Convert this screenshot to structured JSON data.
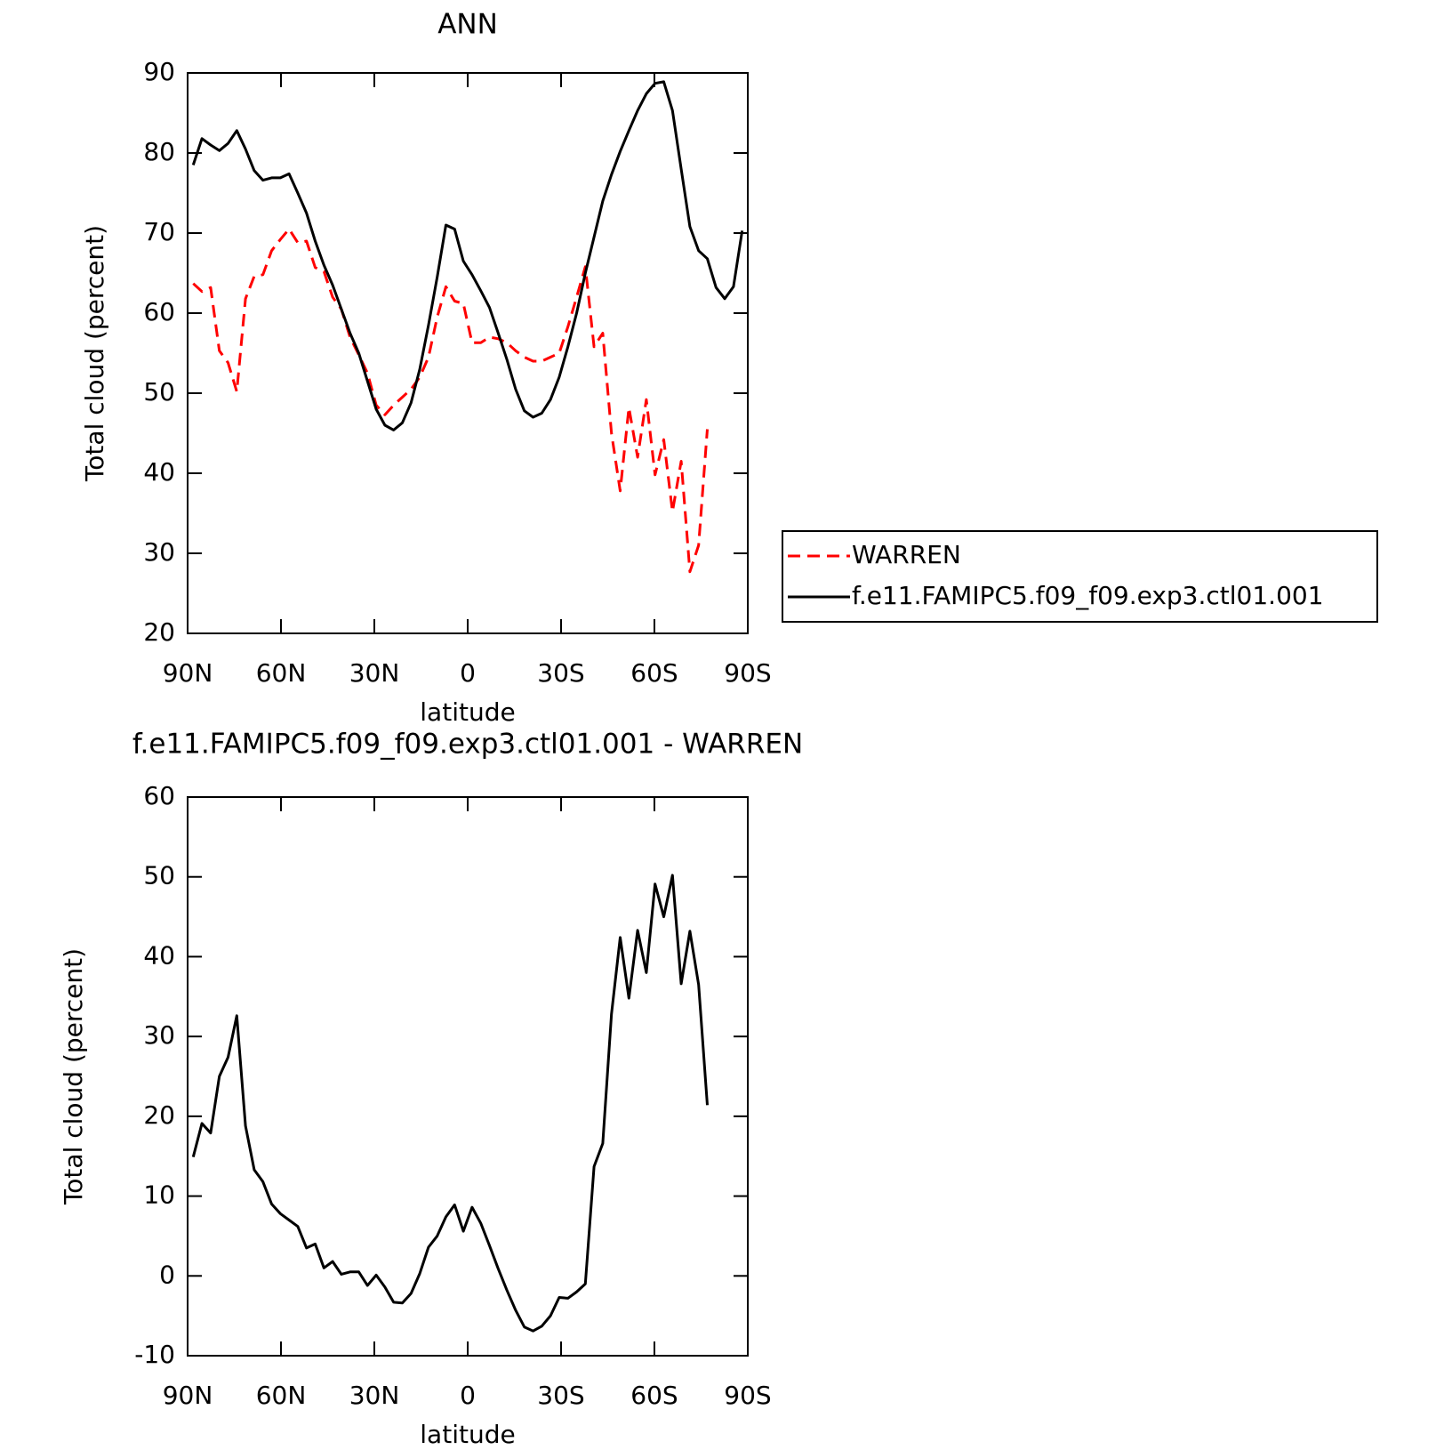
{
  "chart_data": [
    {
      "type": "line",
      "title": "ANN",
      "xlabel": "latitude",
      "ylabel": "Total cloud (percent)",
      "x": [
        88.2,
        85.4,
        82.6,
        79.8,
        77,
        74.2,
        71.4,
        68.6,
        65.8,
        63,
        60.2,
        57.4,
        54.6,
        51.8,
        49,
        46.2,
        43.4,
        40.6,
        37.8,
        35,
        32.2,
        29.4,
        26.6,
        23.8,
        21,
        18.2,
        15.4,
        12.6,
        9.8,
        7,
        4.2,
        1.4,
        -1.4,
        -4.2,
        -7,
        -9.8,
        -12.6,
        -15.4,
        -18.2,
        -21,
        -23.8,
        -26.6,
        -29.4,
        -32.2,
        -35,
        -37.8,
        -40.6,
        -43.4,
        -46.2,
        -49,
        -51.8,
        -54.6,
        -57.4,
        -60.2,
        -63,
        -65.8,
        -68.6,
        -71.4,
        -74.2,
        -77,
        -79.8,
        -82.6,
        -85.4,
        -88.2
      ],
      "series": [
        {
          "name": "WARREN",
          "color": "#ff0000",
          "dashed": true,
          "values": [
            63.7,
            62.7,
            63.2,
            55.3,
            53.8,
            50.2,
            61.8,
            64.6,
            64.8,
            67.8,
            69.2,
            70.5,
            68.8,
            69,
            65.7,
            65.2,
            62,
            60.5,
            57,
            54.8,
            52.5,
            48.5,
            47.3,
            48.5,
            49.5,
            50.5,
            52,
            54.5,
            59.5,
            63.3,
            61.5,
            61.2,
            56.3,
            56.3,
            57,
            56.8,
            56.3,
            55.3,
            54.5,
            54,
            54,
            54.5,
            55,
            58.3,
            62,
            65.8,
            55.8,
            57.5,
            45,
            37.8,
            48.2,
            42,
            49.2,
            39.8,
            44.2,
            35.2,
            41.5,
            27.7,
            31,
            45.5,
            null,
            null,
            null,
            null
          ]
        },
        {
          "name": "f.e11.FAMIPC5.f09_f09.exp3.ctl01.001",
          "color": "#000000",
          "dashed": false,
          "values": [
            78.5,
            81.8,
            81,
            80.3,
            81.2,
            82.8,
            80.5,
            77.8,
            76.6,
            76.9,
            76.9,
            77.4,
            75,
            72.5,
            69,
            66,
            63.5,
            60.5,
            57.5,
            55,
            51.5,
            48,
            46,
            45.4,
            46.3,
            48.8,
            53,
            58.5,
            64.5,
            71,
            70.5,
            66.5,
            64.8,
            62.8,
            60.7,
            57.5,
            54.2,
            50.5,
            47.8,
            47,
            47.5,
            49.2,
            52,
            55.8,
            60,
            65,
            69.5,
            74,
            77.3,
            80.2,
            82.8,
            85.3,
            87.4,
            88.7,
            88.9,
            85.3,
            78,
            70.8,
            67.8,
            66.8,
            63.2,
            61.8,
            63.3,
            70.3
          ]
        }
      ],
      "xlim": [
        90,
        -90
      ],
      "xticks": [
        {
          "value": 90,
          "label": "90N"
        },
        {
          "value": 60,
          "label": "60N"
        },
        {
          "value": 30,
          "label": "30N"
        },
        0,
        {
          "value": -30,
          "label": "30S"
        },
        {
          "value": -60,
          "label": "60S"
        },
        {
          "value": -90,
          "label": "90S"
        }
      ],
      "ylim": [
        20,
        90
      ],
      "yticks": [
        20,
        30,
        40,
        50,
        60,
        70,
        80,
        90
      ],
      "legend": "right"
    },
    {
      "type": "line",
      "title": "f.e11.FAMIPC5.f09_f09.exp3.ctl01.001 - WARREN",
      "xlabel": "latitude",
      "ylabel": "Total cloud (percent)",
      "x": [
        88.2,
        85.4,
        82.6,
        79.8,
        77,
        74.2,
        71.4,
        68.6,
        65.8,
        63,
        60.2,
        57.4,
        54.6,
        51.8,
        49,
        46.2,
        43.4,
        40.6,
        37.8,
        35,
        32.2,
        29.4,
        26.6,
        23.8,
        21,
        18.2,
        15.4,
        12.6,
        9.8,
        7,
        4.2,
        1.4,
        -1.4,
        -4.2,
        -7,
        -9.8,
        -12.6,
        -15.4,
        -18.2,
        -21,
        -23.8,
        -26.6,
        -29.4,
        -32.2,
        -35,
        -37.8,
        -40.6,
        -43.4,
        -46.2,
        -49,
        -51.8,
        -54.6,
        -57.4,
        -60.2,
        -63,
        -65.8,
        -68.6,
        -71.4,
        -74.2,
        -77
      ],
      "series": [
        {
          "color": "#000000",
          "dashed": false,
          "values": [
            14.9,
            19.1,
            17.9,
            25,
            27.4,
            32.6,
            18.8,
            13.3,
            11.8,
            9,
            7.8,
            7,
            6.2,
            3.5,
            4,
            1,
            1.8,
            0.2,
            0.5,
            0.5,
            -1.2,
            0.1,
            -1.4,
            -3.3,
            -3.4,
            -2.2,
            0.3,
            3.6,
            5,
            7.4,
            8.9,
            5.6,
            8.6,
            6.6,
            3.8,
            0.9,
            -1.8,
            -4.3,
            -6.4,
            -6.9,
            -6.3,
            -5,
            -2.7,
            -2.8,
            -2,
            -1,
            13.7,
            16.6,
            32.8,
            42.4,
            34.8,
            43.3,
            38,
            49.1,
            45,
            50.2,
            36.6,
            43.2,
            36.5,
            21.4
          ]
        }
      ],
      "xlim": [
        90,
        -90
      ],
      "xticks": [
        {
          "value": 90,
          "label": "90N"
        },
        {
          "value": 60,
          "label": "60N"
        },
        {
          "value": 30,
          "label": "30N"
        },
        0,
        {
          "value": -30,
          "label": "30S"
        },
        {
          "value": -60,
          "label": "60S"
        },
        {
          "value": -90,
          "label": "90S"
        }
      ],
      "ylim": [
        -10,
        60
      ],
      "yticks": [
        -10,
        0,
        10,
        20,
        30,
        40,
        50,
        60
      ]
    }
  ]
}
